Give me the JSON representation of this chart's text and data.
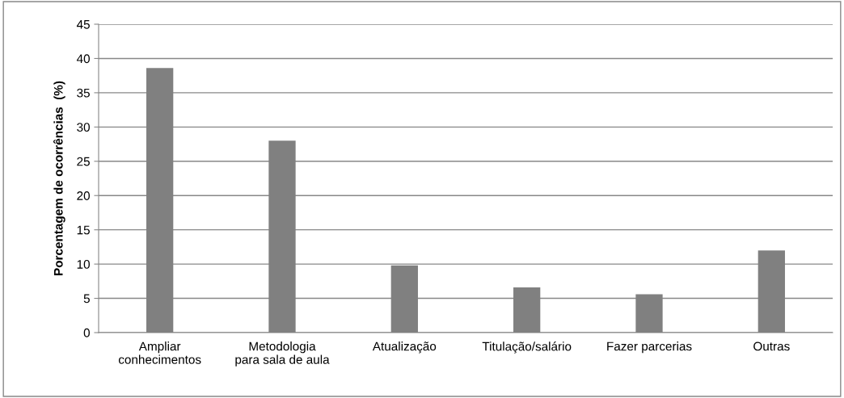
{
  "chart_data": {
    "type": "bar",
    "ylabel": "Porcentagem de ocorrências  (%)",
    "categories": [
      "Ampliar\nconhecimentos",
      "Metodologia\npara sala de aula",
      "Atualização",
      "Titulação/salário",
      "Fazer parcerias",
      "Outras"
    ],
    "values": [
      38.6,
      28,
      9.8,
      6.6,
      5.6,
      12
    ],
    "color": "#808080",
    "ylim": [
      0,
      45
    ],
    "yticks": [
      0,
      5,
      10,
      15,
      20,
      25,
      30,
      35,
      40,
      45
    ],
    "grid": "y",
    "legend": false
  }
}
